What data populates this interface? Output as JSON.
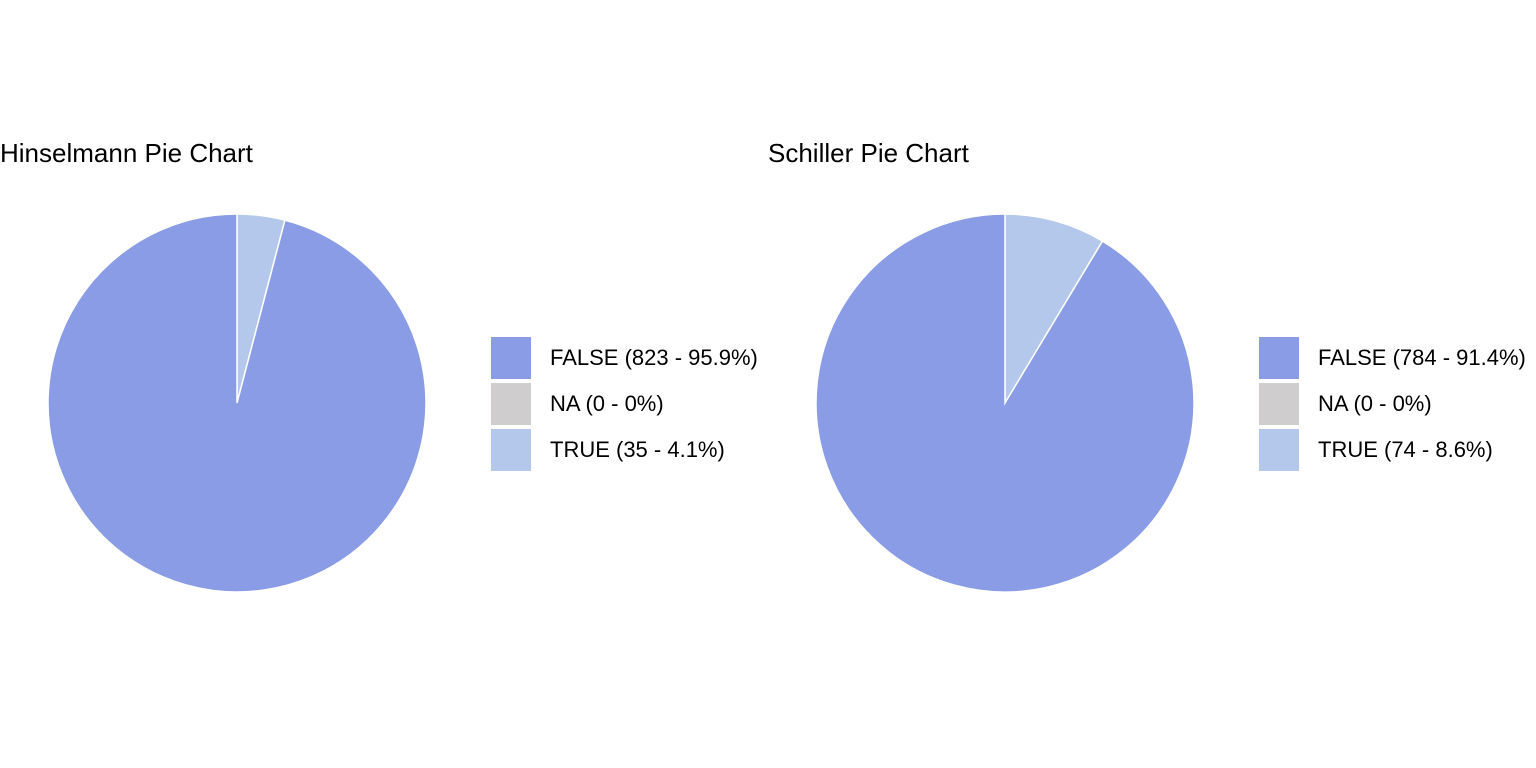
{
  "colors": {
    "FALSE": "#8a9ce6",
    "NA": "#d0cdce",
    "TRUE": "#b3c8ea"
  },
  "chart_data": [
    {
      "type": "pie",
      "title": "Hinselmann Pie Chart",
      "categories": [
        "FALSE",
        "NA",
        "TRUE"
      ],
      "values": [
        823,
        0,
        35
      ],
      "percentages": [
        95.9,
        0,
        4.1
      ],
      "legend_labels": [
        "FALSE (823 - 95.9%)",
        "NA (0 - 0%)",
        "TRUE (35 - 4.1%)"
      ],
      "legend_position": "right"
    },
    {
      "type": "pie",
      "title": "Schiller Pie Chart",
      "categories": [
        "FALSE",
        "NA",
        "TRUE"
      ],
      "values": [
        784,
        0,
        74
      ],
      "percentages": [
        91.4,
        0,
        8.6
      ],
      "legend_labels": [
        "FALSE (784 - 91.4%)",
        "NA (0 - 0%)",
        "TRUE (74 - 8.6%)"
      ],
      "legend_position": "right"
    }
  ]
}
